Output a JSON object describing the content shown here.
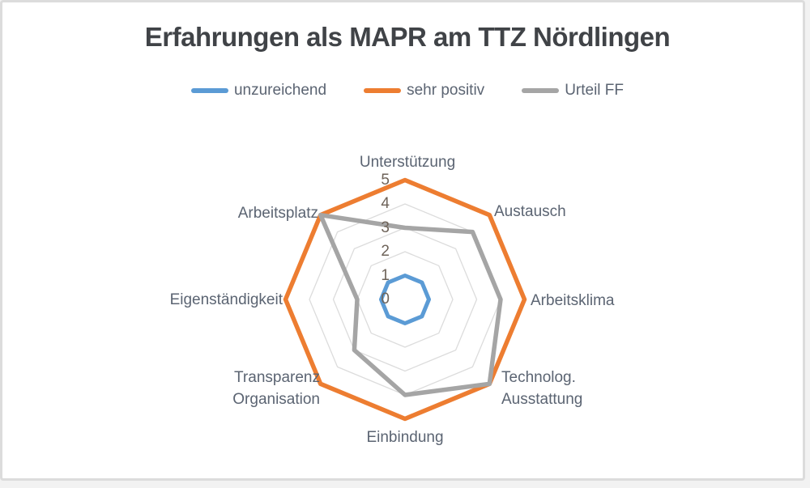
{
  "window": {
    "background_color": "#ffffff",
    "border_color": "#dcdcdc"
  },
  "chart_data": {
    "type": "radar",
    "title": "Erfahrungen als MAPR am TTZ Nördlingen",
    "categories": [
      "Unterstützung",
      "Austausch",
      "Arbeitsklima",
      "Technolog. Ausstattung",
      "Einbindung",
      "Transparenz Organisation",
      "Eigenständigkeit",
      "Arbeitsplatz"
    ],
    "series": [
      {
        "name": "unzureichend",
        "color": "#5B9BD5",
        "values": [
          1,
          1,
          1,
          1,
          1,
          1,
          1,
          1
        ]
      },
      {
        "name": "sehr positiv",
        "color": "#ED7D31",
        "values": [
          5,
          5,
          5,
          5,
          5,
          5,
          5,
          5
        ]
      },
      {
        "name": "Urteil FF",
        "color": "#A5A5A5",
        "values": [
          3,
          4,
          4,
          5,
          4,
          3,
          2,
          5
        ]
      }
    ],
    "radial_axis": {
      "min": 0,
      "max": 5,
      "ticks": [
        0,
        1,
        2,
        3,
        4,
        5
      ]
    },
    "gridlines": true,
    "gridline_color": "#dcdcdc",
    "legend_position": "top",
    "title_color": "#404347",
    "category_label_color": "#5b6472",
    "tick_label_color": "#6e6359"
  }
}
